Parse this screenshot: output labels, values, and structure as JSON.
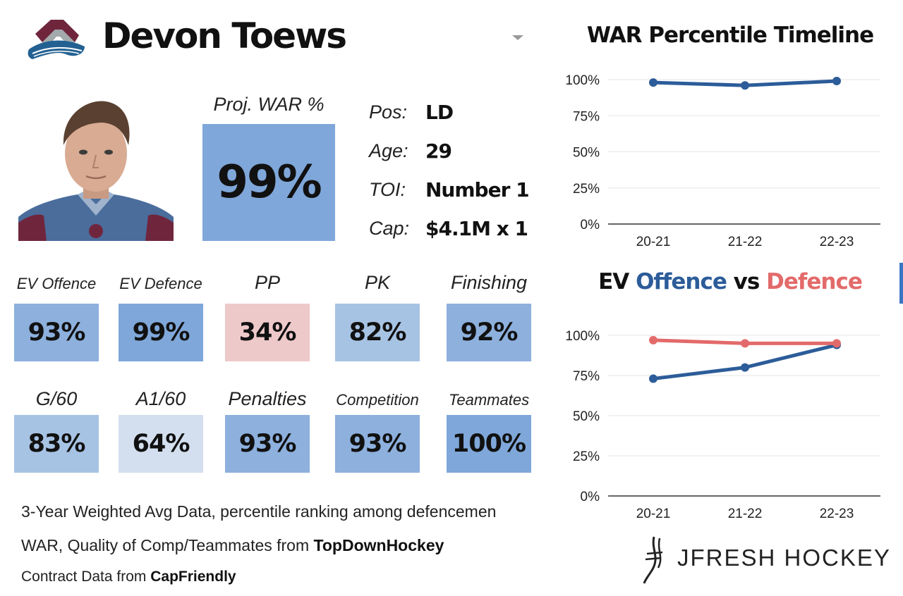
{
  "player": {
    "name": "Devon Toews"
  },
  "projected_war": {
    "label": "Proj. WAR %",
    "value": "99%",
    "color": "#7fa7d9"
  },
  "info": [
    {
      "label": "Pos:",
      "value": "LD"
    },
    {
      "label": "Age:",
      "value": "29"
    },
    {
      "label": "TOI:",
      "value": "Number 1"
    },
    {
      "label": "Cap:",
      "value": "$4.1M x 1"
    }
  ],
  "stats": [
    {
      "label": "EV Offence",
      "value": "93%",
      "pct": 93,
      "color": "#8db0dd"
    },
    {
      "label": "EV Defence",
      "value": "99%",
      "pct": 99,
      "color": "#7fa7d9"
    },
    {
      "label": "PP",
      "value": "34%",
      "pct": 34,
      "color": "#eec9ca"
    },
    {
      "label": "PK",
      "value": "82%",
      "pct": 82,
      "color": "#a7c3e4"
    },
    {
      "label": "Finishing",
      "value": "92%",
      "pct": 92,
      "color": "#8db0dd"
    },
    {
      "label": "G/60",
      "value": "83%",
      "pct": 83,
      "color": "#a7c3e4"
    },
    {
      "label": "A1/60",
      "value": "64%",
      "pct": 64,
      "color": "#d3dfee"
    },
    {
      "label": "Penalties",
      "value": "93%",
      "pct": 93,
      "color": "#8db0dd"
    },
    {
      "label": "Competition",
      "value": "93%",
      "pct": 93,
      "color": "#8db0dd"
    },
    {
      "label": "Teammates",
      "value": "100%",
      "pct": 100,
      "color": "#7fa7d9"
    }
  ],
  "footer": {
    "line1": "3-Year Weighted Avg Data, percentile ranking among defencemen",
    "line2_prefix": "WAR, Quality of Comp/Teammates from ",
    "line2_source": "TopDownHockey",
    "line3_prefix": "Contract Data from ",
    "line3_source": "CapFriendly"
  },
  "chart2_title": {
    "part1": "EV ",
    "part2": "Offence",
    "part3": " vs ",
    "part4": "Defence"
  },
  "brand": {
    "text": "JFRESH HOCKEY"
  },
  "colors": {
    "offence": "#2c5c99",
    "defence": "#e36a6a",
    "war_line": "#2c5c99",
    "grid": "#e6e6e6",
    "axis": "#333333"
  },
  "chart_data": [
    {
      "type": "line",
      "title": "WAR Percentile Timeline",
      "categories": [
        "20-21",
        "21-22",
        "22-23"
      ],
      "series": [
        {
          "values": [
            98,
            96,
            99
          ]
        }
      ],
      "ylim": [
        0,
        100
      ],
      "yticks": [
        "0%",
        "25%",
        "50%",
        "75%",
        "100%"
      ],
      "grid": true
    },
    {
      "type": "line",
      "title": "EV Offence vs Defence",
      "categories": [
        "20-21",
        "21-22",
        "22-23"
      ],
      "series": [
        {
          "name": "Offence",
          "values": [
            73,
            80,
            94
          ]
        },
        {
          "name": "Defence",
          "values": [
            97,
            95,
            95
          ]
        }
      ],
      "ylim": [
        0,
        100
      ],
      "yticks": [
        "0%",
        "25%",
        "50%",
        "75%",
        "100%"
      ],
      "grid": true
    }
  ]
}
